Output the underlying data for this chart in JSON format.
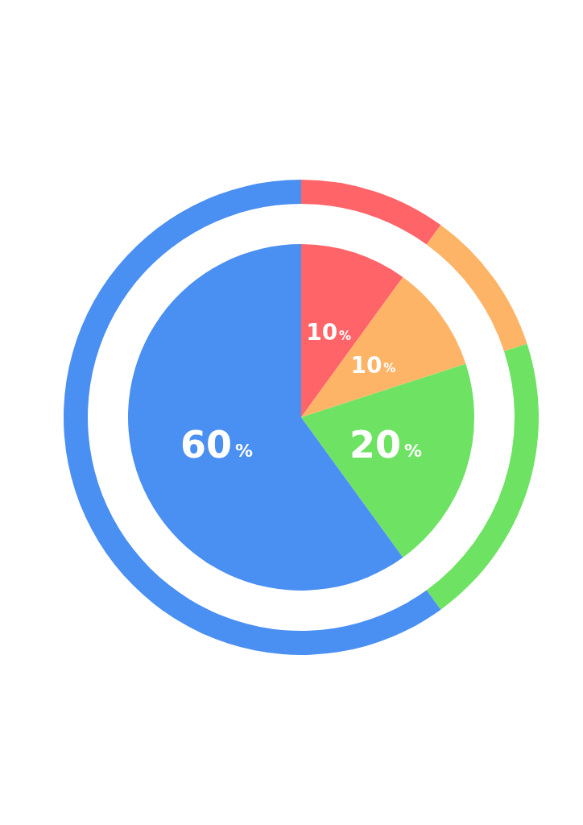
{
  "chart_data": {
    "type": "pie",
    "categories": [
      null,
      null,
      null,
      null
    ],
    "colors": [
      "#ff6468",
      "#fdb466",
      "#6ee262",
      "#4a8ff2"
    ],
    "series": [
      {
        "values": [
          10,
          10,
          20,
          60
        ],
        "value_labels": [
          "10%",
          "10%",
          "20%",
          "60%"
        ]
      },
      {
        "type": "donut",
        "values": [
          10,
          10,
          20,
          60
        ]
      }
    ]
  }
}
